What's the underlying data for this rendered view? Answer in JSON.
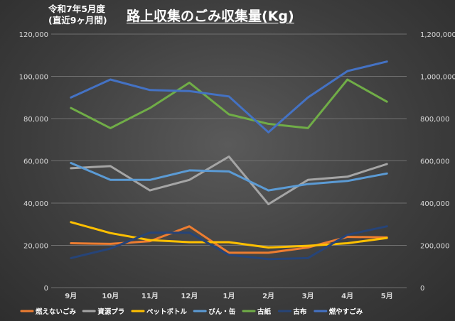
{
  "header": {
    "note_line1": "令和7年5月度",
    "note_line2": "(直近9ヶ月間)",
    "title": "路上収集のごみ収集量(Kg)"
  },
  "chart_data": {
    "type": "line",
    "title": "路上収集のごみ収集量(Kg)",
    "categories": [
      "9月",
      "10月",
      "11月",
      "12月",
      "1月",
      "2月",
      "3月",
      "4月",
      "5月"
    ],
    "y_left": {
      "ylim": [
        0,
        120000
      ],
      "ticks": [
        "0",
        "20,000",
        "40,000",
        "60,000",
        "80,000",
        "100,000",
        "120,000"
      ]
    },
    "y_right": {
      "ylim": [
        0,
        1200000
      ],
      "ticks": [
        "0",
        "200,000",
        "400,000",
        "600,000",
        "800,000",
        "1,000,000",
        "1,200,000"
      ]
    },
    "grid": true,
    "legend_position": "bottom",
    "series": [
      {
        "name": "燃えないごみ",
        "color": "#ed7d31",
        "axis": "left",
        "values": [
          21000,
          20700,
          22000,
          29000,
          16500,
          16500,
          19000,
          24000,
          23800
        ]
      },
      {
        "name": "資源プラ",
        "color": "#a5a5a5",
        "axis": "left",
        "values": [
          56500,
          57500,
          46000,
          51000,
          62000,
          39500,
          51000,
          52500,
          58500
        ]
      },
      {
        "name": "ペットボトル",
        "color": "#ffc000",
        "axis": "left",
        "values": [
          31000,
          25800,
          22500,
          21500,
          21500,
          19000,
          19800,
          21000,
          23500
        ]
      },
      {
        "name": "びん・缶",
        "color": "#5b9bd5",
        "axis": "left",
        "values": [
          59000,
          51000,
          51000,
          55500,
          55000,
          46000,
          49000,
          50500,
          54000
        ]
      },
      {
        "name": "古紙",
        "color": "#70ad47",
        "axis": "left",
        "values": [
          85000,
          75500,
          85000,
          97000,
          82000,
          77500,
          75500,
          98500,
          88000
        ]
      },
      {
        "name": "古布",
        "color": "#264478",
        "axis": "left",
        "values": [
          14000,
          18500,
          26000,
          26000,
          15500,
          13500,
          14000,
          25000,
          29000
        ]
      },
      {
        "name": "燃やすごみ",
        "color": "#4472c4",
        "axis": "right",
        "values": [
          900000,
          985000,
          935000,
          930000,
          905000,
          735000,
          900000,
          1025000,
          1070000
        ]
      }
    ]
  }
}
